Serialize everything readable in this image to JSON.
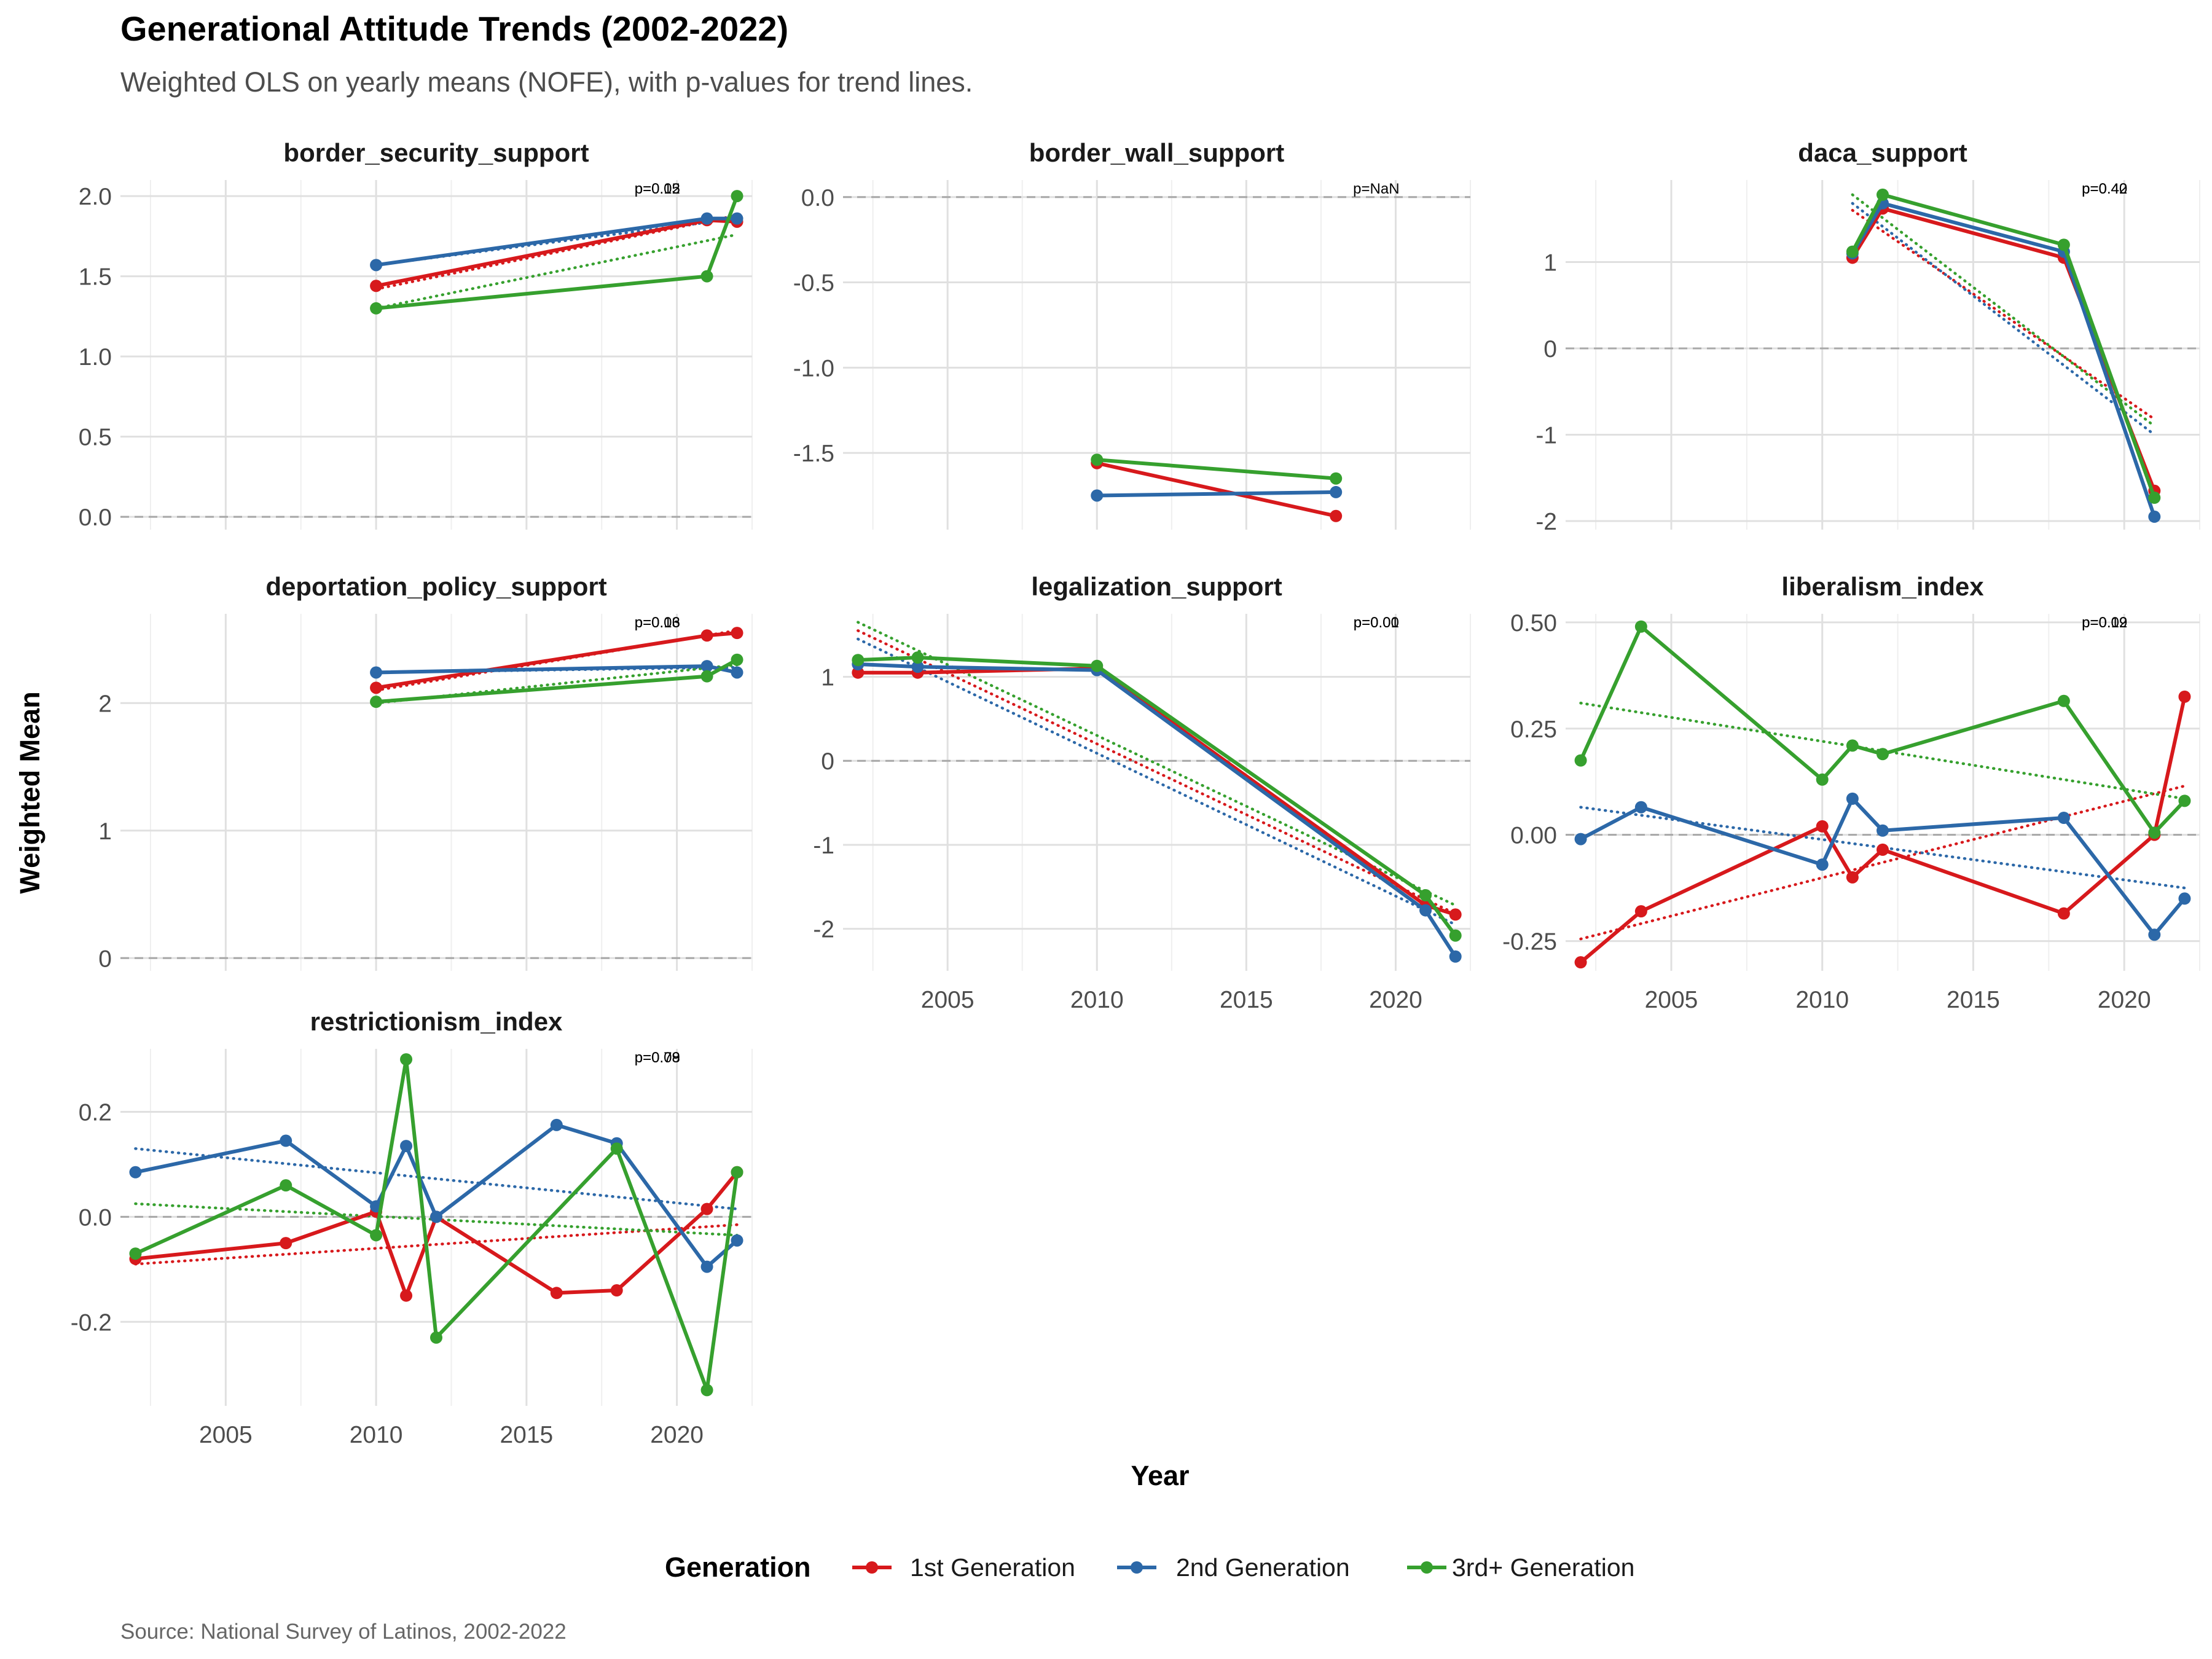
{
  "title": "Generational Attitude Trends (2002-2022)",
  "subtitle": "Weighted OLS on yearly means (NOFE), with p-values for trend lines.",
  "caption": "Source: National Survey of Latinos, 2002-2022",
  "colors": {
    "1st Generation": "#d7191c",
    "2nd Generation": "#2c68a8",
    "3rd+ Generation": "#36a02e"
  },
  "chart_data": {
    "type": "line",
    "xlabel": "Year",
    "ylabel": "Weighted Mean",
    "xlim": [
      2001.5,
      2022.5
    ],
    "legend": {
      "title": "Generation",
      "position": "bottom",
      "entries": [
        "1st Generation",
        "2nd Generation",
        "3rd+ Generation"
      ]
    },
    "x_ticks": [
      2005,
      2010,
      2015,
      2020
    ],
    "grid": true,
    "panels": [
      {
        "name": "border_security_support",
        "ylim": [
          -0.08,
          2.1
        ],
        "y_ticks": [
          0.0,
          0.5,
          1.0,
          1.5,
          2.0
        ],
        "y_tick_labels": [
          "0.0",
          "0.5",
          "1.0",
          "1.5",
          "2.0"
        ],
        "pvalue_labels": [
          "p=0.05",
          "p=0.12"
        ],
        "series": [
          {
            "name": "1st Generation",
            "x": [
              2010,
              2021,
              2022
            ],
            "y": [
              1.44,
              1.85,
              1.84
            ],
            "trend_x": [
              2010,
              2022
            ],
            "trend_y": [
              1.42,
              1.88
            ]
          },
          {
            "name": "2nd Generation",
            "x": [
              2010,
              2021,
              2022
            ],
            "y": [
              1.57,
              1.86,
              1.86
            ],
            "trend_x": [
              2010,
              2022
            ],
            "trend_y": [
              1.57,
              1.86
            ]
          },
          {
            "name": "3rd+ Generation",
            "x": [
              2010,
              2021,
              2022
            ],
            "y": [
              1.3,
              1.5,
              2.0
            ],
            "trend_x": [
              2010,
              2022
            ],
            "trend_y": [
              1.3,
              1.76
            ]
          }
        ]
      },
      {
        "name": "border_wall_support",
        "ylim": [
          -1.95,
          0.1
        ],
        "y_ticks": [
          0.0,
          -0.5,
          -1.0,
          -1.5
        ],
        "y_tick_labels": [
          "0.0",
          "-0.5",
          "-1.0",
          "-1.5"
        ],
        "pvalue_labels": [
          "p=NaN"
        ],
        "series": [
          {
            "name": "1st Generation",
            "x": [
              2010,
              2018
            ],
            "y": [
              -1.56,
              -1.87
            ],
            "trend_x": [],
            "trend_y": []
          },
          {
            "name": "2nd Generation",
            "x": [
              2010,
              2018
            ],
            "y": [
              -1.75,
              -1.73
            ],
            "trend_x": [],
            "trend_y": []
          },
          {
            "name": "3rd+ Generation",
            "x": [
              2010,
              2018
            ],
            "y": [
              -1.54,
              -1.65
            ],
            "trend_x": [],
            "trend_y": []
          }
        ]
      },
      {
        "name": "daca_support",
        "ylim": [
          -2.1,
          1.95
        ],
        "y_ticks": [
          1,
          0,
          -1,
          -2
        ],
        "y_tick_labels": [
          "1",
          "0",
          "-1",
          "-2"
        ],
        "pvalue_labels": [
          "p=0.42",
          "p=0.40"
        ],
        "series": [
          {
            "name": "1st Generation",
            "x": [
              2011,
              2012,
              2018,
              2021
            ],
            "y": [
              1.05,
              1.62,
              1.05,
              -1.65
            ],
            "trend_x": [
              2011,
              2021
            ],
            "trend_y": [
              1.6,
              -0.82
            ]
          },
          {
            "name": "2nd Generation",
            "x": [
              2011,
              2012,
              2018,
              2021
            ],
            "y": [
              1.1,
              1.68,
              1.12,
              -1.95
            ],
            "trend_x": [
              2011,
              2021
            ],
            "trend_y": [
              1.68,
              -1.0
            ]
          },
          {
            "name": "3rd+ Generation",
            "x": [
              2011,
              2012,
              2018,
              2021
            ],
            "y": [
              1.12,
              1.78,
              1.2,
              -1.73
            ],
            "trend_x": [
              2011,
              2021
            ],
            "trend_y": [
              1.78,
              -0.9
            ]
          }
        ]
      },
      {
        "name": "deportation_policy_support",
        "ylim": [
          -0.1,
          2.7
        ],
        "y_ticks": [
          0,
          1,
          2
        ],
        "y_tick_labels": [
          "0",
          "1",
          "2"
        ],
        "pvalue_labels": [
          "p=0.06",
          "p=0.13"
        ],
        "series": [
          {
            "name": "1st Generation",
            "x": [
              2010,
              2021,
              2022
            ],
            "y": [
              2.12,
              2.53,
              2.55
            ],
            "trend_x": [
              2010,
              2022
            ],
            "trend_y": [
              2.1,
              2.57
            ]
          },
          {
            "name": "2nd Generation",
            "x": [
              2010,
              2021,
              2022
            ],
            "y": [
              2.24,
              2.29,
              2.24
            ],
            "trend_x": [
              2010,
              2022
            ],
            "trend_y": [
              2.24,
              2.28
            ]
          },
          {
            "name": "3rd+ Generation",
            "x": [
              2010,
              2021,
              2022
            ],
            "y": [
              2.01,
              2.21,
              2.34
            ],
            "trend_x": [
              2010,
              2022
            ],
            "trend_y": [
              2.0,
              2.3
            ]
          }
        ]
      },
      {
        "name": "legalization_support",
        "ylim": [
          -2.5,
          1.75
        ],
        "y_ticks": [
          1,
          0,
          -1,
          -2
        ],
        "y_tick_labels": [
          "1",
          "0",
          "-1",
          "-2"
        ],
        "pvalue_labels": [
          "p=0.00",
          "p=0.01"
        ],
        "series": [
          {
            "name": "1st Generation",
            "x": [
              2002,
              2004,
              2010,
              2021,
              2022
            ],
            "y": [
              1.05,
              1.05,
              1.1,
              -1.72,
              -1.83
            ],
            "trend_x": [
              2002,
              2022
            ],
            "trend_y": [
              1.55,
              -1.82
            ]
          },
          {
            "name": "2nd Generation",
            "x": [
              2002,
              2004,
              2010,
              2021,
              2022
            ],
            "y": [
              1.15,
              1.12,
              1.08,
              -1.78,
              -2.33
            ],
            "trend_x": [
              2002,
              2022
            ],
            "trend_y": [
              1.45,
              -1.95
            ]
          },
          {
            "name": "3rd+ Generation",
            "x": [
              2002,
              2004,
              2010,
              2021,
              2022
            ],
            "y": [
              1.2,
              1.23,
              1.13,
              -1.6,
              -2.08
            ],
            "trend_x": [
              2002,
              2022
            ],
            "trend_y": [
              1.65,
              -1.72
            ]
          }
        ]
      },
      {
        "name": "liberalism_index",
        "ylim": [
          -0.32,
          0.52
        ],
        "y_ticks": [
          0.5,
          0.25,
          0.0,
          -0.25
        ],
        "y_tick_labels": [
          "0.50",
          "0.25",
          "0.00",
          "-0.25"
        ],
        "pvalue_labels": [
          "p=0.02",
          "p=0.19"
        ],
        "series": [
          {
            "name": "1st Generation",
            "x": [
              2002,
              2004,
              2010,
              2011,
              2012,
              2018,
              2021,
              2022
            ],
            "y": [
              -0.3,
              -0.18,
              0.02,
              -0.1,
              -0.035,
              -0.185,
              0.0,
              0.325
            ],
            "trend_x": [
              2002,
              2022
            ],
            "trend_y": [
              -0.245,
              0.115
            ]
          },
          {
            "name": "2nd Generation",
            "x": [
              2002,
              2004,
              2010,
              2011,
              2012,
              2018,
              2021,
              2022
            ],
            "y": [
              -0.01,
              0.065,
              -0.07,
              0.085,
              0.01,
              0.04,
              -0.235,
              -0.15
            ],
            "trend_x": [
              2002,
              2022
            ],
            "trend_y": [
              0.065,
              -0.125
            ]
          },
          {
            "name": "3rd+ Generation",
            "x": [
              2002,
              2004,
              2010,
              2011,
              2012,
              2018,
              2021,
              2022
            ],
            "y": [
              0.175,
              0.49,
              0.13,
              0.21,
              0.19,
              0.315,
              0.005,
              0.08
            ],
            "trend_x": [
              2002,
              2022
            ],
            "trend_y": [
              0.31,
              0.085
            ]
          }
        ]
      },
      {
        "name": "restrictionism_index",
        "ylim": [
          -0.36,
          0.32
        ],
        "y_ticks": [
          0.2,
          0.0,
          -0.2
        ],
        "y_tick_labels": [
          "0.2",
          "0.0",
          "-0.2"
        ],
        "pvalue_labels": [
          "p=0.09",
          "p=0.78"
        ],
        "series": [
          {
            "name": "1st Generation",
            "x": [
              2002,
              2007,
              2010,
              2011,
              2012,
              2016,
              2018,
              2021,
              2022
            ],
            "y": [
              -0.08,
              -0.05,
              0.01,
              -0.15,
              0.0,
              -0.145,
              -0.14,
              0.015,
              0.085
            ],
            "trend_x": [
              2002,
              2022
            ],
            "trend_y": [
              -0.09,
              -0.015
            ]
          },
          {
            "name": "2nd Generation",
            "x": [
              2002,
              2007,
              2010,
              2011,
              2012,
              2016,
              2018,
              2021,
              2022
            ],
            "y": [
              0.085,
              0.145,
              0.02,
              0.135,
              0.0,
              0.175,
              0.14,
              -0.095,
              -0.045
            ],
            "trend_x": [
              2002,
              2022
            ],
            "trend_y": [
              0.13,
              0.015
            ]
          },
          {
            "name": "3rd+ Generation",
            "x": [
              2002,
              2007,
              2010,
              2011,
              2012,
              2016,
              2018,
              2021,
              2022
            ],
            "y": [
              -0.07,
              0.06,
              -0.035,
              0.3,
              -0.23,
              null,
              0.13,
              -0.33,
              0.085
            ],
            "trend_x": [
              2002,
              2022
            ],
            "trend_y": [
              0.025,
              -0.035
            ]
          }
        ]
      }
    ]
  }
}
